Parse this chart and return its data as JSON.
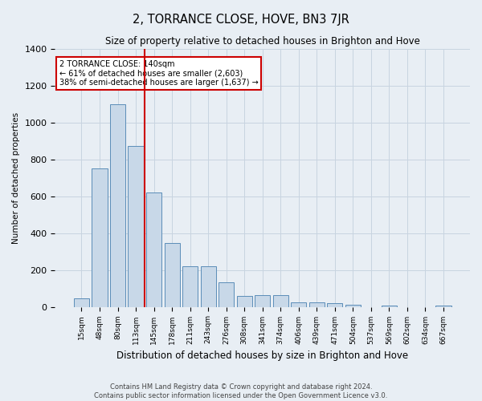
{
  "title": "2, TORRANCE CLOSE, HOVE, BN3 7JR",
  "subtitle": "Size of property relative to detached houses in Brighton and Hove",
  "xlabel": "Distribution of detached houses by size in Brighton and Hove",
  "ylabel": "Number of detached properties",
  "footer_line1": "Contains HM Land Registry data © Crown copyright and database right 2024.",
  "footer_line2": "Contains public sector information licensed under the Open Government Licence v3.0.",
  "bar_labels": [
    "15sqm",
    "48sqm",
    "80sqm",
    "113sqm",
    "145sqm",
    "178sqm",
    "211sqm",
    "243sqm",
    "276sqm",
    "308sqm",
    "341sqm",
    "374sqm",
    "406sqm",
    "439sqm",
    "471sqm",
    "504sqm",
    "537sqm",
    "569sqm",
    "602sqm",
    "634sqm",
    "667sqm"
  ],
  "bar_values": [
    45,
    750,
    1100,
    870,
    620,
    345,
    220,
    220,
    135,
    60,
    65,
    65,
    25,
    25,
    18,
    10,
    0,
    8,
    0,
    0,
    8
  ],
  "bar_color": "#c8d8e8",
  "bar_edge_color": "#5b8db8",
  "grid_color": "#c8d4e0",
  "bg_color": "#e8eef4",
  "vline_color": "#cc0000",
  "vline_x_idx": 4,
  "annotation_text": "2 TORRANCE CLOSE: 140sqm\n← 61% of detached houses are smaller (2,603)\n38% of semi-detached houses are larger (1,637) →",
  "annotation_box_color": "#ffffff",
  "annotation_box_edge": "#cc0000",
  "ylim": [
    0,
    1400
  ],
  "yticks": [
    0,
    200,
    400,
    600,
    800,
    1000,
    1200,
    1400
  ]
}
